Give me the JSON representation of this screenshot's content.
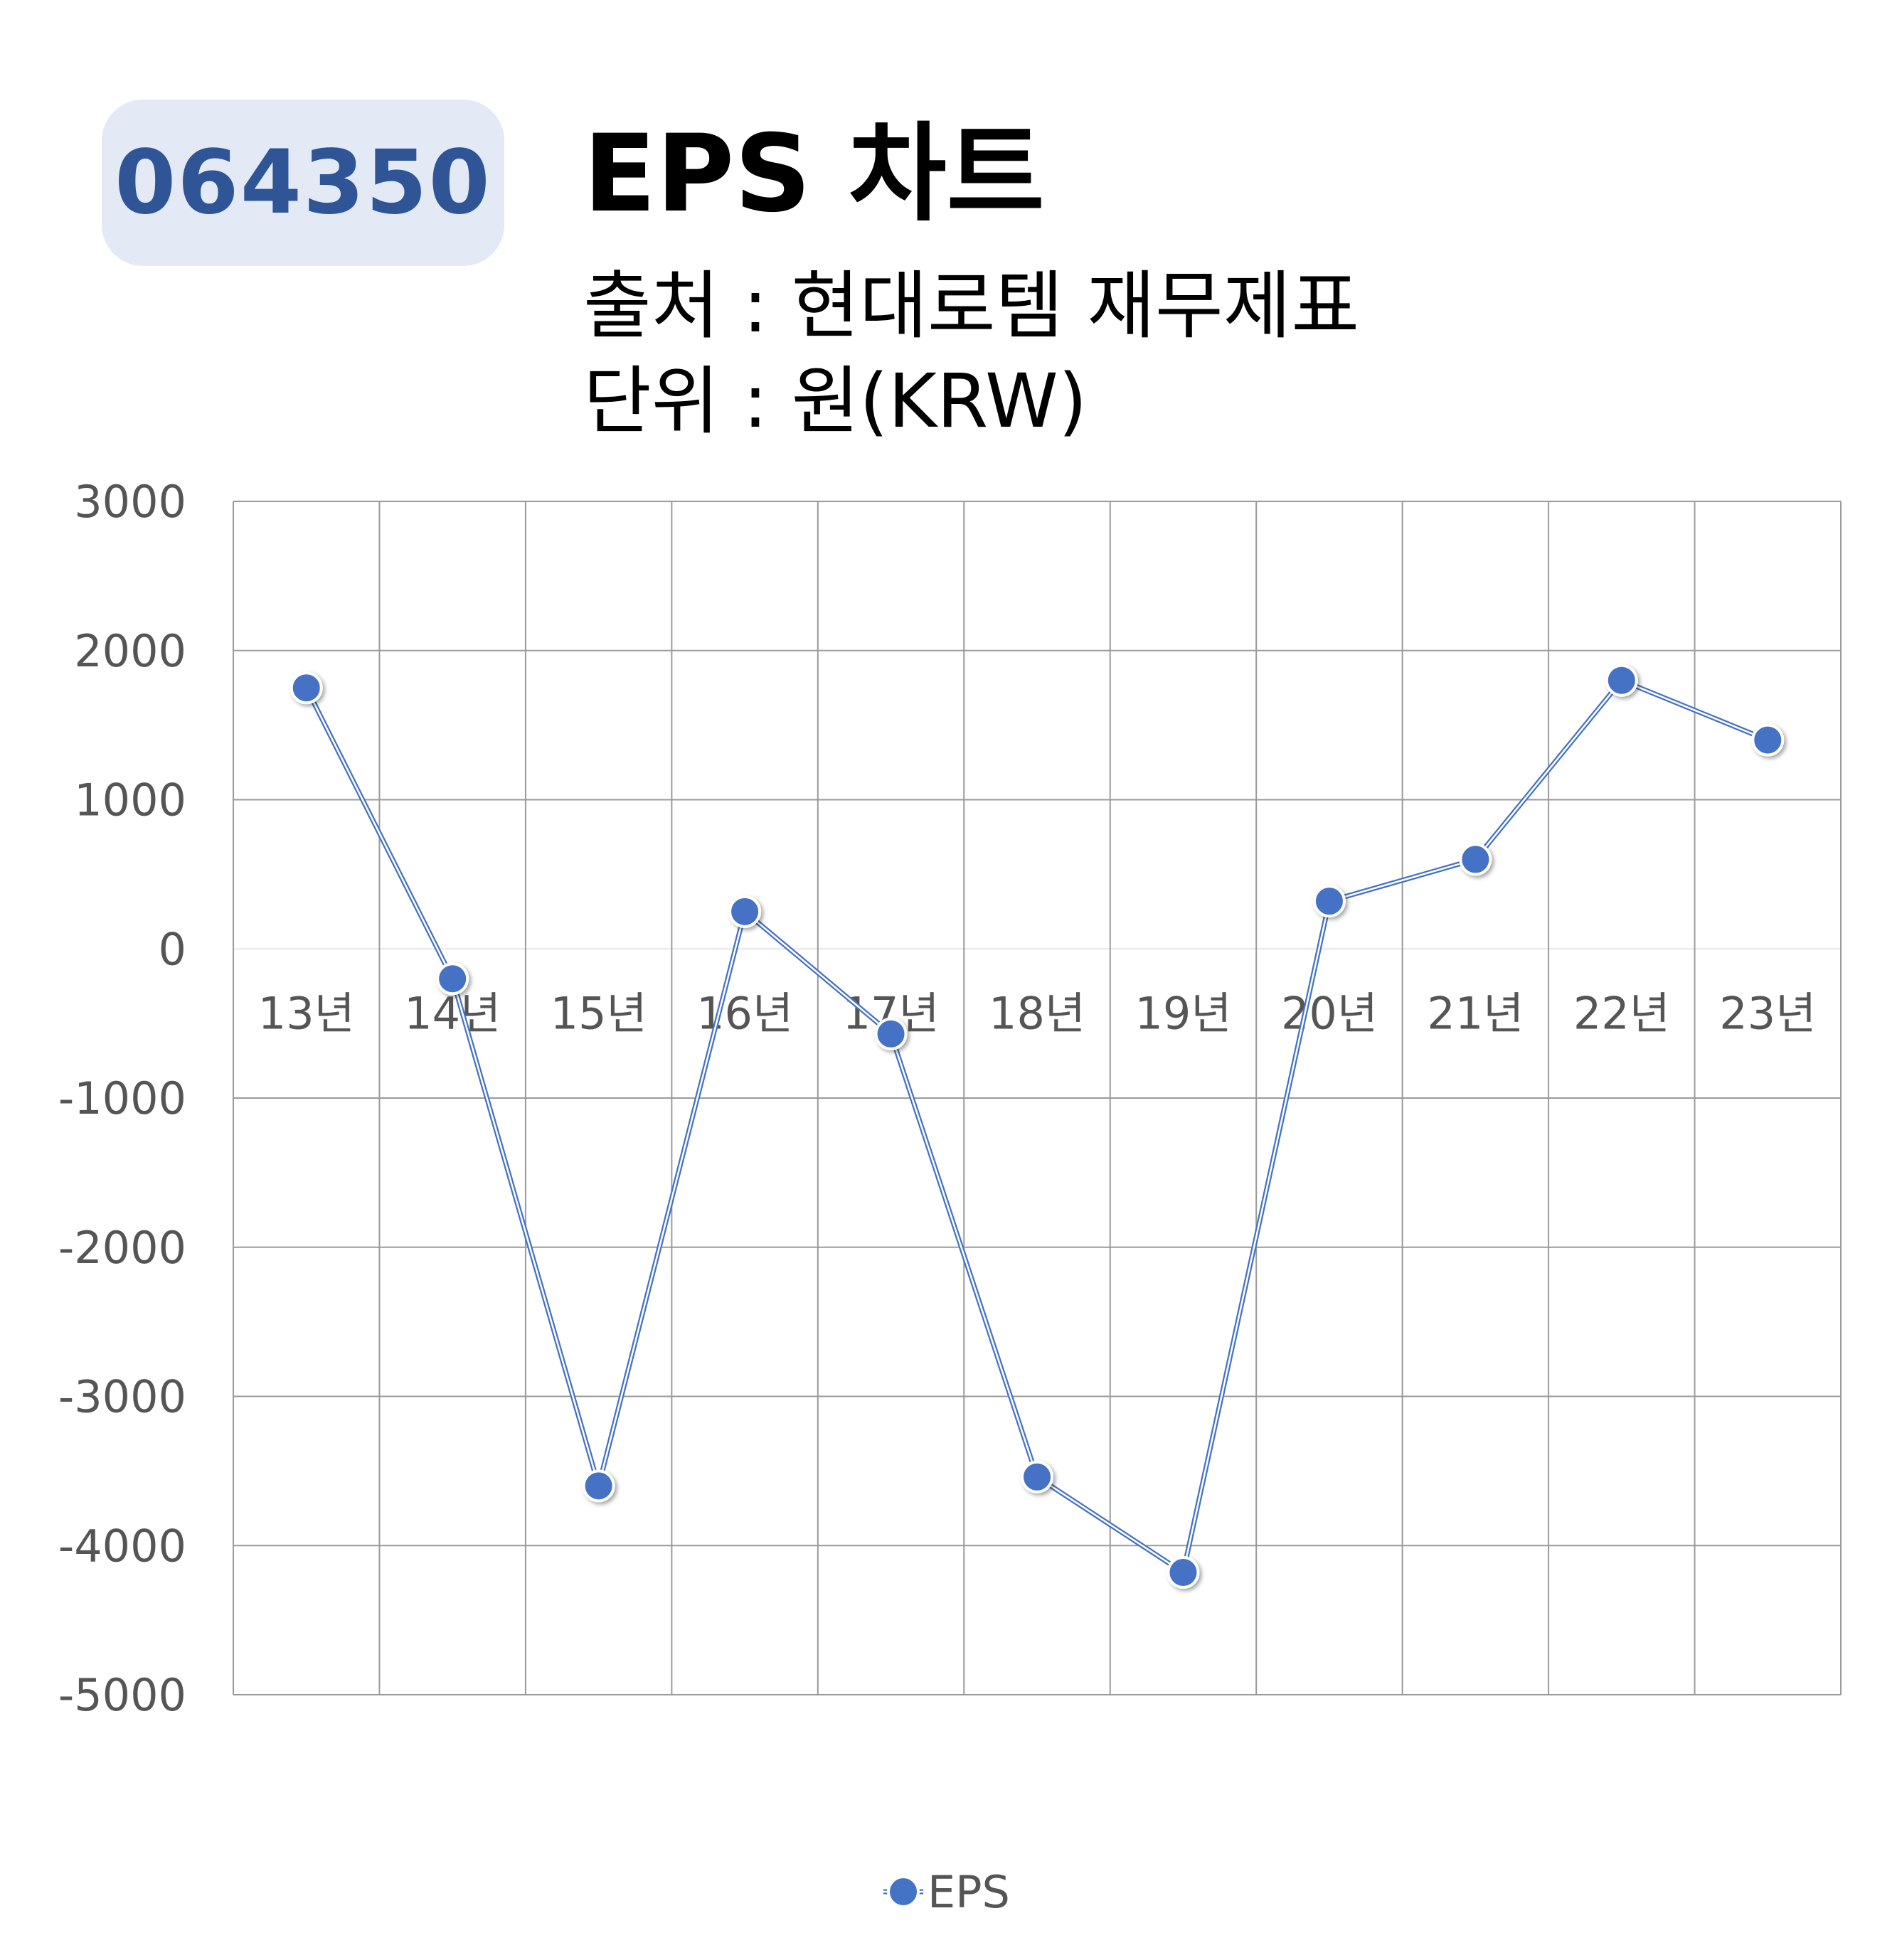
{
  "header": {
    "ticker": "064350",
    "title": "EPS 차트",
    "source": "출처 : 현대로템 재무제표",
    "unit": "단위 : 원(KRW)"
  },
  "chart_data": {
    "type": "line",
    "categories": [
      "13년",
      "14년",
      "15년",
      "16년",
      "17년",
      "18년",
      "19년",
      "20년",
      "21년",
      "22년",
      "23년"
    ],
    "series": [
      {
        "name": "EPS",
        "values": [
          1750,
          -200,
          -3600,
          250,
          -570,
          -3540,
          -4180,
          320,
          600,
          1800,
          1400
        ],
        "color": "#4472c4"
      }
    ],
    "y_ticks": [
      "3000",
      "2000",
      "1000",
      "0",
      "-1000",
      "-2000",
      "-3000",
      "-4000",
      "-5000"
    ],
    "ylim": [
      -5000,
      3000
    ],
    "grid": true,
    "legend": "bottom-center"
  }
}
